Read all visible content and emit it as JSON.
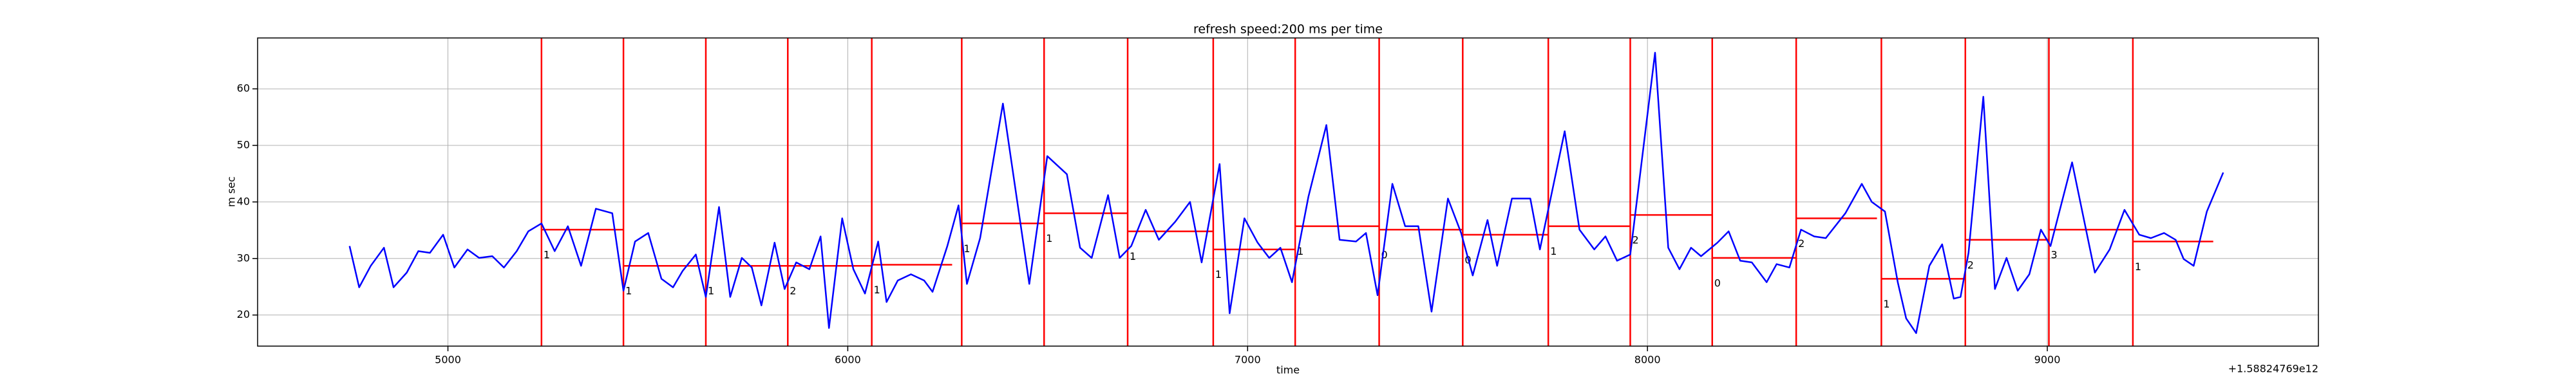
{
  "chart_data": {
    "type": "line",
    "title": "refresh speed:200 ms per time",
    "xlabel": "time",
    "ylabel": "m sec",
    "offset_text": "+1.58824769e12",
    "xlim": [
      4524,
      9678
    ],
    "ylim": [
      14.5,
      69
    ],
    "xticks": [
      5000,
      6000,
      7000,
      8000,
      9000
    ],
    "yticks": [
      20,
      30,
      40,
      50,
      60
    ],
    "grid": true,
    "x": [
      4754,
      4778,
      4807,
      4840,
      4864,
      4897,
      4926,
      4955,
      4988,
      5016,
      5049,
      5078,
      5111,
      5140,
      5172,
      5201,
      5234,
      5267,
      5300,
      5333,
      5370,
      5411,
      5439,
      5468,
      5501,
      5534,
      5563,
      5587,
      5620,
      5645,
      5678,
      5706,
      5735,
      5760,
      5784,
      5817,
      5842,
      5871,
      5904,
      5932,
      5953,
      5986,
      6014,
      6043,
      6076,
      6097,
      6125,
      6158,
      6191,
      6212,
      6249,
      6277,
      6298,
      6331,
      6388,
      6454,
      6499,
      6548,
      6581,
      6610,
      6651,
      6680,
      6709,
      6745,
      6778,
      6819,
      6856,
      6885,
      6930,
      6955,
      6992,
      7025,
      7054,
      7082,
      7111,
      7152,
      7197,
      7230,
      7271,
      7296,
      7325,
      7362,
      7394,
      7427,
      7460,
      7501,
      7534,
      7563,
      7600,
      7624,
      7661,
      7707,
      7731,
      7793,
      7830,
      7867,
      7895,
      7924,
      7957,
      8019,
      8052,
      8080,
      8109,
      8134,
      8175,
      8203,
      8232,
      8261,
      8298,
      8323,
      8355,
      8384,
      8417,
      8446,
      8495,
      8536,
      8561,
      8594,
      8626,
      8647,
      8672,
      8705,
      8737,
      8766,
      8783,
      8803,
      8840,
      8869,
      8898,
      8926,
      8955,
      8984,
      9008,
      9062,
      9119,
      9156,
      9193,
      9230,
      9259,
      9292,
      9321,
      9341,
      9366,
      9399,
      9440
    ],
    "series": [
      {
        "color": "#0000ff",
        "values": [
          32.2,
          24.9,
          28.7,
          31.9,
          24.9,
          27.5,
          31.3,
          31,
          34.2,
          28.4,
          31.6,
          30.1,
          30.4,
          28.4,
          31.3,
          34.8,
          36.2,
          31.3,
          35.7,
          28.7,
          38.8,
          38,
          24.3,
          33,
          34.5,
          26.4,
          24.9,
          27.8,
          30.7,
          23.2,
          39.1,
          23.2,
          30.1,
          28.4,
          21.7,
          32.8,
          24.6,
          29.3,
          28.1,
          33.9,
          17.7,
          37.1,
          28.1,
          23.8,
          33,
          22.3,
          26.1,
          27.2,
          26.1,
          24.1,
          32.2,
          39.4,
          25.5,
          33.6,
          57.4,
          25.5,
          48.1,
          44.9,
          31.9,
          30.1,
          41.2,
          30.1,
          32.2,
          38.6,
          33.3,
          36.5,
          40,
          29.3,
          46.7,
          20.3,
          37.1,
          32.8,
          30.1,
          31.9,
          25.8,
          40.9,
          53.6,
          33.3,
          33,
          34.5,
          23.5,
          43.2,
          35.7,
          35.7,
          20.6,
          40.6,
          34.5,
          27,
          36.8,
          28.7,
          40.6,
          40.6,
          31.6,
          52.5,
          35.1,
          31.6,
          33.9,
          29.6,
          30.7,
          66.4,
          31.9,
          28.1,
          31.9,
          30.4,
          32.8,
          34.8,
          29.6,
          29.3,
          25.8,
          29,
          28.4,
          35.1,
          33.9,
          33.6,
          38,
          43.2,
          40,
          38.3,
          25.8,
          19.4,
          16.8,
          28.7,
          32.5,
          22.9,
          23.2,
          31,
          58.6,
          24.6,
          30.1,
          24.3,
          27.2,
          35.1,
          32.2,
          47,
          27.5,
          31.6,
          38.6,
          34.2,
          33.6,
          34.5,
          33.3,
          29.9,
          28.7,
          38.3,
          45.2
        ]
      }
    ],
    "vlines": {
      "color": "#ff0000",
      "x": [
        5234,
        5439,
        5645,
        5850,
        6060,
        6285,
        6491,
        6700,
        6914,
        7119,
        7329,
        7538,
        7752,
        7957,
        8162,
        8372,
        8585,
        8795,
        9004,
        9214
      ]
    },
    "segments": [
      {
        "x": [
          5234,
          5439
        ],
        "y": 35.1,
        "label": "1"
      },
      {
        "x": [
          5439,
          5645
        ],
        "y": 28.7,
        "label": "1"
      },
      {
        "x": [
          5645,
          5850
        ],
        "y": 28.7,
        "label": "1"
      },
      {
        "x": [
          5850,
          6060
        ],
        "y": 28.7,
        "label": "2"
      },
      {
        "x": [
          6060,
          6261
        ],
        "y": 28.9,
        "label": "1"
      },
      {
        "x": [
          6285,
          6491
        ],
        "y": 36.2,
        "label": "1"
      },
      {
        "x": [
          6491,
          6700
        ],
        "y": 38,
        "label": "1"
      },
      {
        "x": [
          6700,
          6914
        ],
        "y": 34.8,
        "label": "1"
      },
      {
        "x": [
          6914,
          7119
        ],
        "y": 31.6,
        "label": "1"
      },
      {
        "x": [
          7119,
          7329
        ],
        "y": 35.7,
        "label": "1"
      },
      {
        "x": [
          7329,
          7538
        ],
        "y": 35.1,
        "label": "0"
      },
      {
        "x": [
          7538,
          7752
        ],
        "y": 34.2,
        "label": "0"
      },
      {
        "x": [
          7752,
          7957
        ],
        "y": 35.7,
        "label": "1"
      },
      {
        "x": [
          7957,
          8162
        ],
        "y": 37.7,
        "label": "2"
      },
      {
        "x": [
          8162,
          8372
        ],
        "y": 30.1,
        "label": "0"
      },
      {
        "x": [
          8372,
          8574
        ],
        "y": 37.1,
        "label": "2"
      },
      {
        "x": [
          8585,
          8795
        ],
        "y": 26.4,
        "label": "1"
      },
      {
        "x": [
          8795,
          9004
        ],
        "y": 33.3,
        "label": "2"
      },
      {
        "x": [
          9004,
          9214
        ],
        "y": 35.1,
        "label": "3"
      },
      {
        "x": [
          9214,
          9415
        ],
        "y": 33,
        "label": "1"
      }
    ]
  }
}
